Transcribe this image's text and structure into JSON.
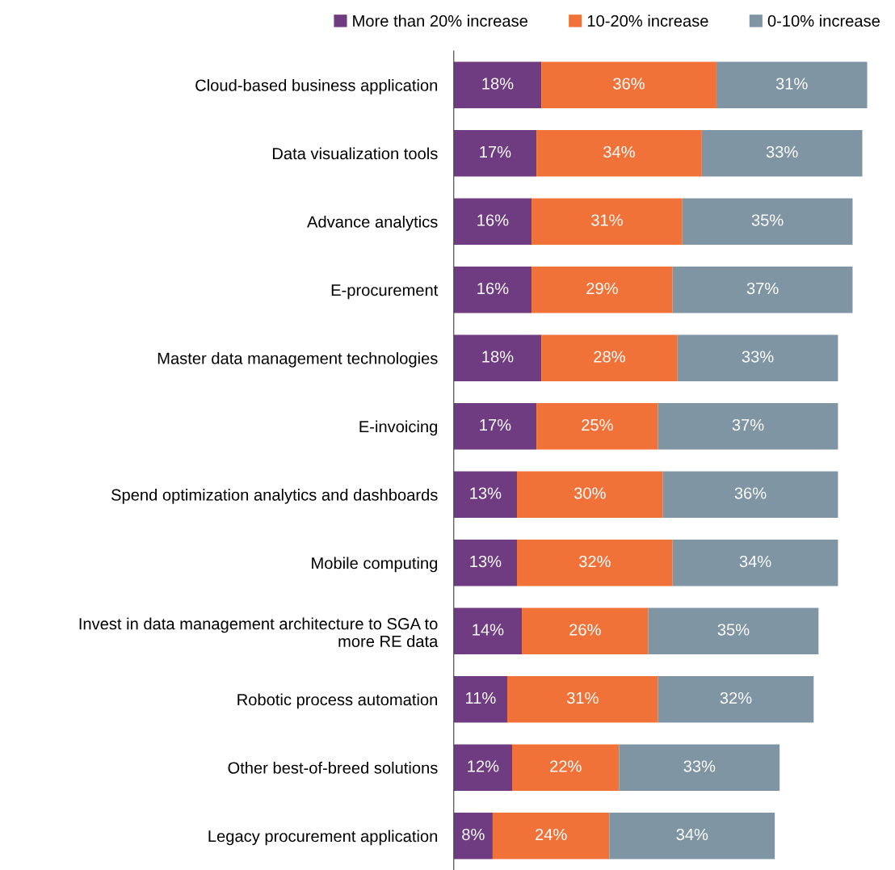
{
  "chart_data": {
    "type": "bar",
    "orientation": "horizontal",
    "stacked": true,
    "legend": "top",
    "categories": [
      "Cloud-based business application",
      "Data visualization tools",
      "Advance analytics",
      "E-procurement",
      "Master data management technologies",
      "E-invoicing",
      "Spend optimization analytics and dashboards",
      "Mobile computing",
      "Invest in data management architecture to SGA to\nmore RE data",
      "Robotic process automation",
      "Other best-of-breed solutions",
      "Legacy procurement application"
    ],
    "series": [
      {
        "name": "More than 20% increase",
        "color": "#6f3c82",
        "values": [
          18,
          17,
          16,
          16,
          18,
          17,
          13,
          13,
          14,
          11,
          12,
          8
        ],
        "value_labels": [
          "18%",
          "17%",
          "16%",
          "16%",
          "18%",
          "17%",
          "13%",
          "13%",
          "14%",
          "11%",
          "12%",
          "8%"
        ]
      },
      {
        "name": "10-20% increase",
        "color": "#f07238",
        "values": [
          36,
          34,
          31,
          29,
          28,
          25,
          30,
          32,
          26,
          31,
          22,
          24
        ],
        "value_labels": [
          "36%",
          "34%",
          "31%",
          "29%",
          "28%",
          "25%",
          "30%",
          "32%",
          "26%",
          "31%",
          "22%",
          "24%"
        ]
      },
      {
        "name": "0-10% increase",
        "color": "#7f95a4",
        "values": [
          31,
          33,
          35,
          37,
          33,
          37,
          36,
          34,
          35,
          32,
          33,
          34
        ],
        "value_labels": [
          "31%",
          "33%",
          "35%",
          "37%",
          "33%",
          "37%",
          "36%",
          "34%",
          "35%",
          "32%",
          "33%",
          "34%"
        ]
      }
    ]
  }
}
